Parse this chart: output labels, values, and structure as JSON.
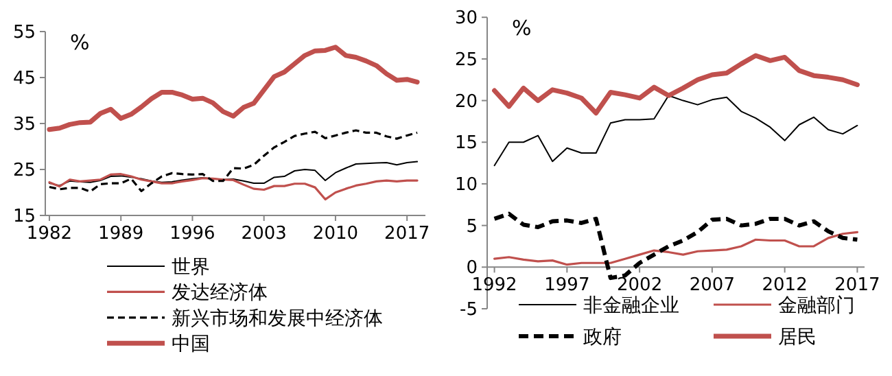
{
  "chart_data": [
    {
      "type": "line",
      "annotations": [
        "%"
      ],
      "x": [
        1982,
        1983,
        1984,
        1985,
        1986,
        1987,
        1988,
        1989,
        1990,
        1991,
        1992,
        1993,
        1994,
        1995,
        1996,
        1997,
        1998,
        1999,
        2000,
        2001,
        2002,
        2003,
        2004,
        2005,
        2006,
        2007,
        2008,
        2009,
        2010,
        2011,
        2012,
        2013,
        2014,
        2015,
        2016,
        2017,
        2018
      ],
      "xlim": [
        1981.6,
        2018.8
      ],
      "xticks": [
        1982,
        1989,
        1996,
        2003,
        2010,
        2017
      ],
      "ylim": [
        15,
        55
      ],
      "yticks": [
        15,
        25,
        35,
        45,
        55
      ],
      "legend": "bottom",
      "grid": false,
      "series": [
        {
          "name": "世界",
          "color": "#000000",
          "values": [
            22,
            21.5,
            22.5,
            22.3,
            22.2,
            22.6,
            23.5,
            23.6,
            23.3,
            23,
            22.5,
            22.2,
            22.3,
            22.7,
            23,
            23.2,
            23,
            22.8,
            22.9,
            22.5,
            22,
            22,
            23.3,
            23.5,
            24.7,
            25,
            24.8,
            22.6,
            24.3,
            25.3,
            26.2,
            26.3,
            26.4,
            26.5,
            26,
            26.5,
            26.7
          ]
        },
        {
          "name": "发达经济体",
          "color": "#c0504d",
          "values": [
            22.2,
            21.3,
            22.8,
            22.4,
            22.6,
            22.8,
            23.9,
            24,
            23.5,
            22.8,
            22.4,
            22,
            22,
            22.4,
            22.7,
            23.1,
            23,
            22.8,
            22.7,
            21.7,
            20.8,
            20.6,
            21.4,
            21.4,
            21.9,
            21.9,
            21.1,
            18.5,
            20,
            20.8,
            21.5,
            21.9,
            22.4,
            22.6,
            22.4,
            22.6,
            22.6
          ]
        },
        {
          "name": "新兴市场和发展中经济体",
          "color": "#000000",
          "line_style": "dashed",
          "values": [
            21.2,
            20.7,
            21,
            21,
            20.2,
            21.8,
            22,
            22,
            23,
            20.3,
            22,
            23.5,
            24.2,
            24,
            23.9,
            24,
            22.5,
            22.5,
            25.3,
            25.2,
            26,
            28,
            29.8,
            31,
            32.3,
            32.8,
            33.2,
            31.8,
            32.4,
            33,
            33.5,
            33,
            33,
            32.2,
            31.7,
            32.4,
            33
          ]
        },
        {
          "name": "中国",
          "color": "#c0504d",
          "values": [
            33.7,
            34,
            34.8,
            35.2,
            35.3,
            37.2,
            38.1,
            36.1,
            37,
            38.6,
            40.4,
            41.8,
            41.8,
            41.2,
            40.3,
            40.5,
            39.5,
            37.6,
            36.6,
            38.5,
            39.4,
            42.3,
            45.2,
            46.2,
            48,
            49.8,
            50.8,
            50.9,
            51.6,
            49.8,
            49.4,
            48.6,
            47.6,
            45.8,
            44.4,
            44.6,
            44
          ]
        }
      ]
    },
    {
      "type": "line",
      "annotations": [
        "%"
      ],
      "x": [
        1992,
        1993,
        1994,
        1995,
        1996,
        1997,
        1998,
        1999,
        2000,
        2001,
        2002,
        2003,
        2004,
        2005,
        2006,
        2007,
        2008,
        2009,
        2010,
        2011,
        2012,
        2013,
        2014,
        2015,
        2016,
        2017
      ],
      "xlim": [
        1991.5,
        2017.5
      ],
      "xticks": [
        1992,
        1997,
        2002,
        2007,
        2012,
        2017
      ],
      "ylim": [
        -5,
        30
      ],
      "yticks": [
        -5,
        0,
        5,
        10,
        15,
        20,
        25,
        30
      ],
      "legend": "bottom",
      "grid": false,
      "series": [
        {
          "name": "非金融企业",
          "color": "#000000",
          "values": [
            12.2,
            15,
            15,
            15.8,
            12.7,
            14.3,
            13.7,
            13.7,
            17.3,
            17.7,
            17.7,
            17.8,
            20.6,
            20,
            19.5,
            20.1,
            20.4,
            18.7,
            17.9,
            16.8,
            15.2,
            17.1,
            18,
            16.5,
            16,
            17
          ]
        },
        {
          "name": "金融部门",
          "color": "#c0504d",
          "values": [
            1,
            1.2,
            0.9,
            0.7,
            0.8,
            0.3,
            0.5,
            0.5,
            0.5,
            1,
            1.5,
            2,
            1.8,
            1.5,
            1.9,
            2,
            2.1,
            2.5,
            3.3,
            3.2,
            3.2,
            2.5,
            2.5,
            3.5,
            4,
            4.2
          ]
        },
        {
          "name": "政府",
          "color": "#000000",
          "line_style": "dashed",
          "values": [
            5.8,
            6.4,
            5.1,
            4.8,
            5.5,
            5.6,
            5.3,
            5.8,
            -1.3,
            -1,
            0.5,
            1.5,
            2.5,
            3.2,
            4.2,
            5.7,
            5.8,
            5,
            5.2,
            5.8,
            5.8,
            5,
            5.5,
            4.3,
            3.5,
            3.3
          ]
        },
        {
          "name": "居民",
          "color": "#c0504d",
          "values": [
            21.2,
            19.3,
            21.5,
            20,
            21.3,
            20.9,
            20.3,
            18.5,
            21,
            20.7,
            20.3,
            21.6,
            20.6,
            21.5,
            22.5,
            23.1,
            23.3,
            24.4,
            25.4,
            24.8,
            25.2,
            23.6,
            23,
            22.8,
            22.5,
            21.9
          ]
        }
      ]
    }
  ]
}
